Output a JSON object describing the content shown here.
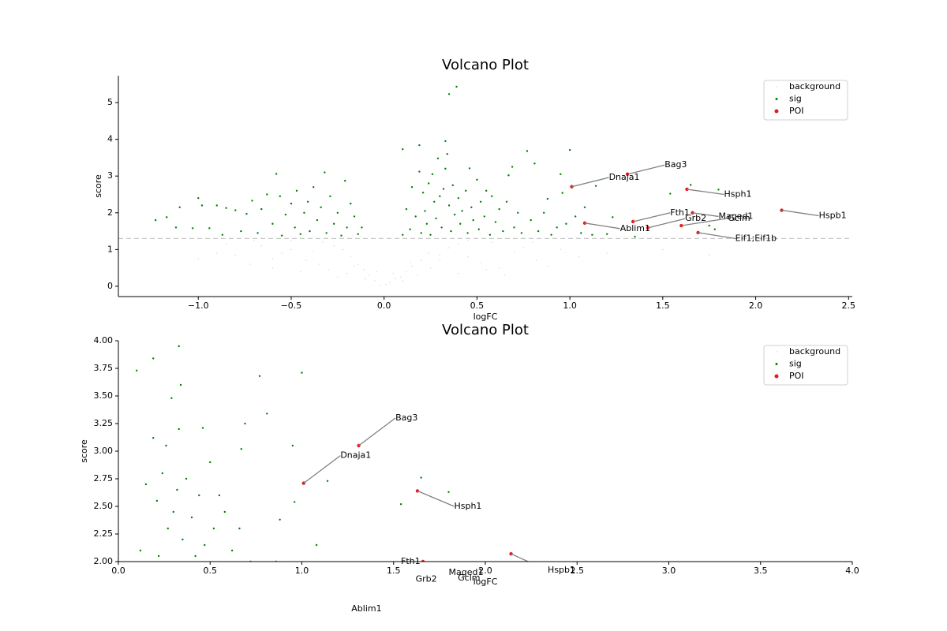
{
  "chart_data": {
    "type": "scatter",
    "threshold": 1.3,
    "panels": [
      {
        "title": "Volcano Plot",
        "xlabel": "logFC",
        "ylabel": "score",
        "xlim": [
          -1.43,
          2.52
        ],
        "ylim": [
          -0.28,
          5.73
        ],
        "xticks": [
          {
            "value": -1.0,
            "label": "−1.0"
          },
          {
            "value": -0.5,
            "label": "−0.5"
          },
          {
            "value": 0.0,
            "label": "0.0"
          },
          {
            "value": 0.5,
            "label": "0.5"
          },
          {
            "value": 1.0,
            "label": "1.0"
          },
          {
            "value": 1.5,
            "label": "1.5"
          },
          {
            "value": 2.0,
            "label": "2.0"
          },
          {
            "value": 2.5,
            "label": "2.5"
          }
        ],
        "yticks": [
          0,
          1,
          2,
          3,
          4,
          5
        ]
      },
      {
        "title": "Volcano Plot",
        "xlabel": "logFC",
        "ylabel": "score",
        "xlim": [
          0,
          4
        ],
        "ylim": [
          2,
          4
        ],
        "xticks": [
          {
            "value": 0.0,
            "label": "0.0"
          },
          {
            "value": 0.5,
            "label": "0.5"
          },
          {
            "value": 1.0,
            "label": "1.0"
          },
          {
            "value": 1.5,
            "label": "1.5"
          },
          {
            "value": 2.0,
            "label": "2.0"
          },
          {
            "value": 2.5,
            "label": "2.5"
          },
          {
            "value": 3.0,
            "label": "3.0"
          },
          {
            "value": 3.5,
            "label": "3.5"
          },
          {
            "value": 4.0,
            "label": "4.0"
          }
        ],
        "yticks": [
          {
            "value": 2.0,
            "label": "2.00"
          },
          {
            "value": 2.25,
            "label": "2.25"
          },
          {
            "value": 2.5,
            "label": "2.50"
          },
          {
            "value": 2.75,
            "label": "2.75"
          },
          {
            "value": 3.0,
            "label": "3.00"
          },
          {
            "value": 3.25,
            "label": "3.25"
          },
          {
            "value": 3.5,
            "label": "3.50"
          },
          {
            "value": 3.75,
            "label": "3.75"
          },
          {
            "value": 4.0,
            "label": "4.00"
          }
        ]
      }
    ],
    "series": [
      {
        "name": "background",
        "color": "#c8c8c8",
        "x": [
          -0.02,
          0.01,
          0.03,
          -0.05,
          0.06,
          -0.08,
          0.09,
          -0.11,
          0.12,
          -0.14,
          0.15,
          -0.18,
          0.2,
          -0.22,
          0.24,
          -0.27,
          0.3,
          -0.33,
          0.35,
          -0.38,
          0.4,
          -0.42,
          0.45,
          -0.5,
          0.52,
          -0.55,
          0.58,
          -0.6,
          0.62,
          -0.66,
          0.7,
          -0.72,
          0.75,
          -0.8,
          0.82,
          -0.85,
          0.88,
          -0.9,
          0.95,
          -1.0,
          1.05,
          -0.3,
          0.25,
          -0.2,
          0.18,
          -0.1,
          0.1,
          -0.35,
          0.4,
          0.55,
          -0.45,
          0.65,
          -0.6,
          0.3,
          -0.25,
          0.05,
          -0.04,
          0.14,
          -0.16,
          0.45,
          -0.5,
          0.8,
          1.2,
          1.5,
          1.75,
          -0.7
        ],
        "values": [
          0.02,
          0.05,
          0.1,
          0.15,
          0.2,
          0.3,
          0.25,
          0.45,
          0.4,
          0.6,
          0.55,
          0.8,
          0.7,
          1.0,
          0.9,
          1.1,
          0.85,
          1.2,
          1.05,
          0.95,
          1.15,
          0.7,
          0.8,
          1.0,
          0.65,
          0.9,
          1.2,
          0.75,
          0.5,
          1.1,
          0.95,
          0.6,
          1.05,
          0.85,
          0.7,
          1.15,
          0.55,
          0.9,
          1.0,
          0.75,
          0.8,
          0.45,
          0.5,
          0.35,
          0.3,
          0.2,
          0.15,
          0.6,
          0.35,
          0.45,
          0.4,
          0.3,
          0.5,
          0.7,
          0.25,
          0.35,
          0.4,
          0.65,
          0.55,
          1.25,
          1.25,
          1.2,
          0.9,
          1.0,
          0.85,
          1.25
        ]
      },
      {
        "name": "sig",
        "color": "#008000",
        "x": [
          -1.23,
          -1.17,
          -1.12,
          -1.1,
          -1.03,
          -1.0,
          -0.98,
          -0.94,
          -0.9,
          -0.87,
          -0.85,
          -0.8,
          -0.77,
          -0.74,
          -0.71,
          -0.68,
          -0.66,
          -0.63,
          -0.6,
          -0.58,
          -0.56,
          -0.55,
          -0.53,
          -0.5,
          -0.48,
          -0.47,
          -0.45,
          -0.43,
          -0.41,
          -0.4,
          -0.38,
          -0.36,
          -0.34,
          -0.32,
          -0.31,
          -0.29,
          -0.27,
          -0.25,
          -0.23,
          -0.21,
          -0.2,
          -0.18,
          -0.16,
          -0.14,
          -0.12,
          0.1,
          0.1,
          0.12,
          0.14,
          0.15,
          0.17,
          0.19,
          0.19,
          0.2,
          0.21,
          0.22,
          0.23,
          0.24,
          0.25,
          0.26,
          0.27,
          0.28,
          0.29,
          0.3,
          0.31,
          0.32,
          0.33,
          0.33,
          0.34,
          0.35,
          0.35,
          0.36,
          0.37,
          0.38,
          0.39,
          0.4,
          0.41,
          0.42,
          0.44,
          0.45,
          0.46,
          0.47,
          0.48,
          0.5,
          0.51,
          0.52,
          0.54,
          0.55,
          0.57,
          0.58,
          0.6,
          0.62,
          0.64,
          0.66,
          0.67,
          0.69,
          0.7,
          0.72,
          0.74,
          0.77,
          0.79,
          0.81,
          0.83,
          0.86,
          0.88,
          0.9,
          0.93,
          0.95,
          0.96,
          0.98,
          1.0,
          1.03,
          1.06,
          1.08,
          1.12,
          1.14,
          1.2,
          1.23,
          1.35,
          1.54,
          1.65,
          1.75,
          1.8,
          1.78
        ],
        "values": [
          1.8,
          1.88,
          1.6,
          2.15,
          1.58,
          2.4,
          2.2,
          1.58,
          2.2,
          1.4,
          2.13,
          2.07,
          1.5,
          1.97,
          2.33,
          1.45,
          2.1,
          2.5,
          1.7,
          3.06,
          2.45,
          1.38,
          1.95,
          2.25,
          1.6,
          2.6,
          1.42,
          2.0,
          2.3,
          1.5,
          2.7,
          1.8,
          2.15,
          3.1,
          1.45,
          2.45,
          1.7,
          2.0,
          1.38,
          2.87,
          1.6,
          2.25,
          1.9,
          1.42,
          1.6,
          3.73,
          1.4,
          2.1,
          1.55,
          2.7,
          1.9,
          3.84,
          3.12,
          1.45,
          2.55,
          2.05,
          1.7,
          2.8,
          1.4,
          3.05,
          2.3,
          1.85,
          3.48,
          2.45,
          1.6,
          2.65,
          3.95,
          3.2,
          3.6,
          5.23,
          2.2,
          1.5,
          2.75,
          1.95,
          5.43,
          2.4,
          1.7,
          2.05,
          2.6,
          1.45,
          3.21,
          2.15,
          1.8,
          2.9,
          1.55,
          2.3,
          1.9,
          2.6,
          1.4,
          2.45,
          1.75,
          2.1,
          1.5,
          2.3,
          3.02,
          3.25,
          1.6,
          2.0,
          1.45,
          3.68,
          1.8,
          3.34,
          1.5,
          2.0,
          2.38,
          1.4,
          1.6,
          3.05,
          2.54,
          1.7,
          3.71,
          1.9,
          1.45,
          2.15,
          1.4,
          2.73,
          1.42,
          1.88,
          1.35,
          2.52,
          2.76,
          1.65,
          2.63,
          1.55
        ]
      },
      {
        "name": "POI",
        "color": "#e41a1c",
        "x": [
          1.31,
          1.01,
          1.63,
          2.14,
          1.34,
          1.42,
          1.66,
          1.6,
          1.08,
          1.69
        ],
        "values": [
          3.05,
          2.71,
          2.64,
          2.07,
          1.76,
          1.59,
          2.0,
          1.65,
          1.72,
          1.46
        ],
        "labels": [
          "Bag3",
          "Dnaja1",
          "Hsph1",
          "Hspb1",
          "Fth1",
          "Grb2",
          "Maged1",
          "Gclm",
          "Ablim1",
          "Eif1;Eif1b"
        ],
        "label_x": [
          1.51,
          1.21,
          1.83,
          2.34,
          1.54,
          1.62,
          1.8,
          1.85,
          1.27,
          1.89
        ],
        "label_y": [
          3.3,
          2.96,
          2.5,
          1.92,
          2.0,
          1.84,
          1.9,
          1.85,
          1.57,
          1.3
        ]
      }
    ]
  }
}
